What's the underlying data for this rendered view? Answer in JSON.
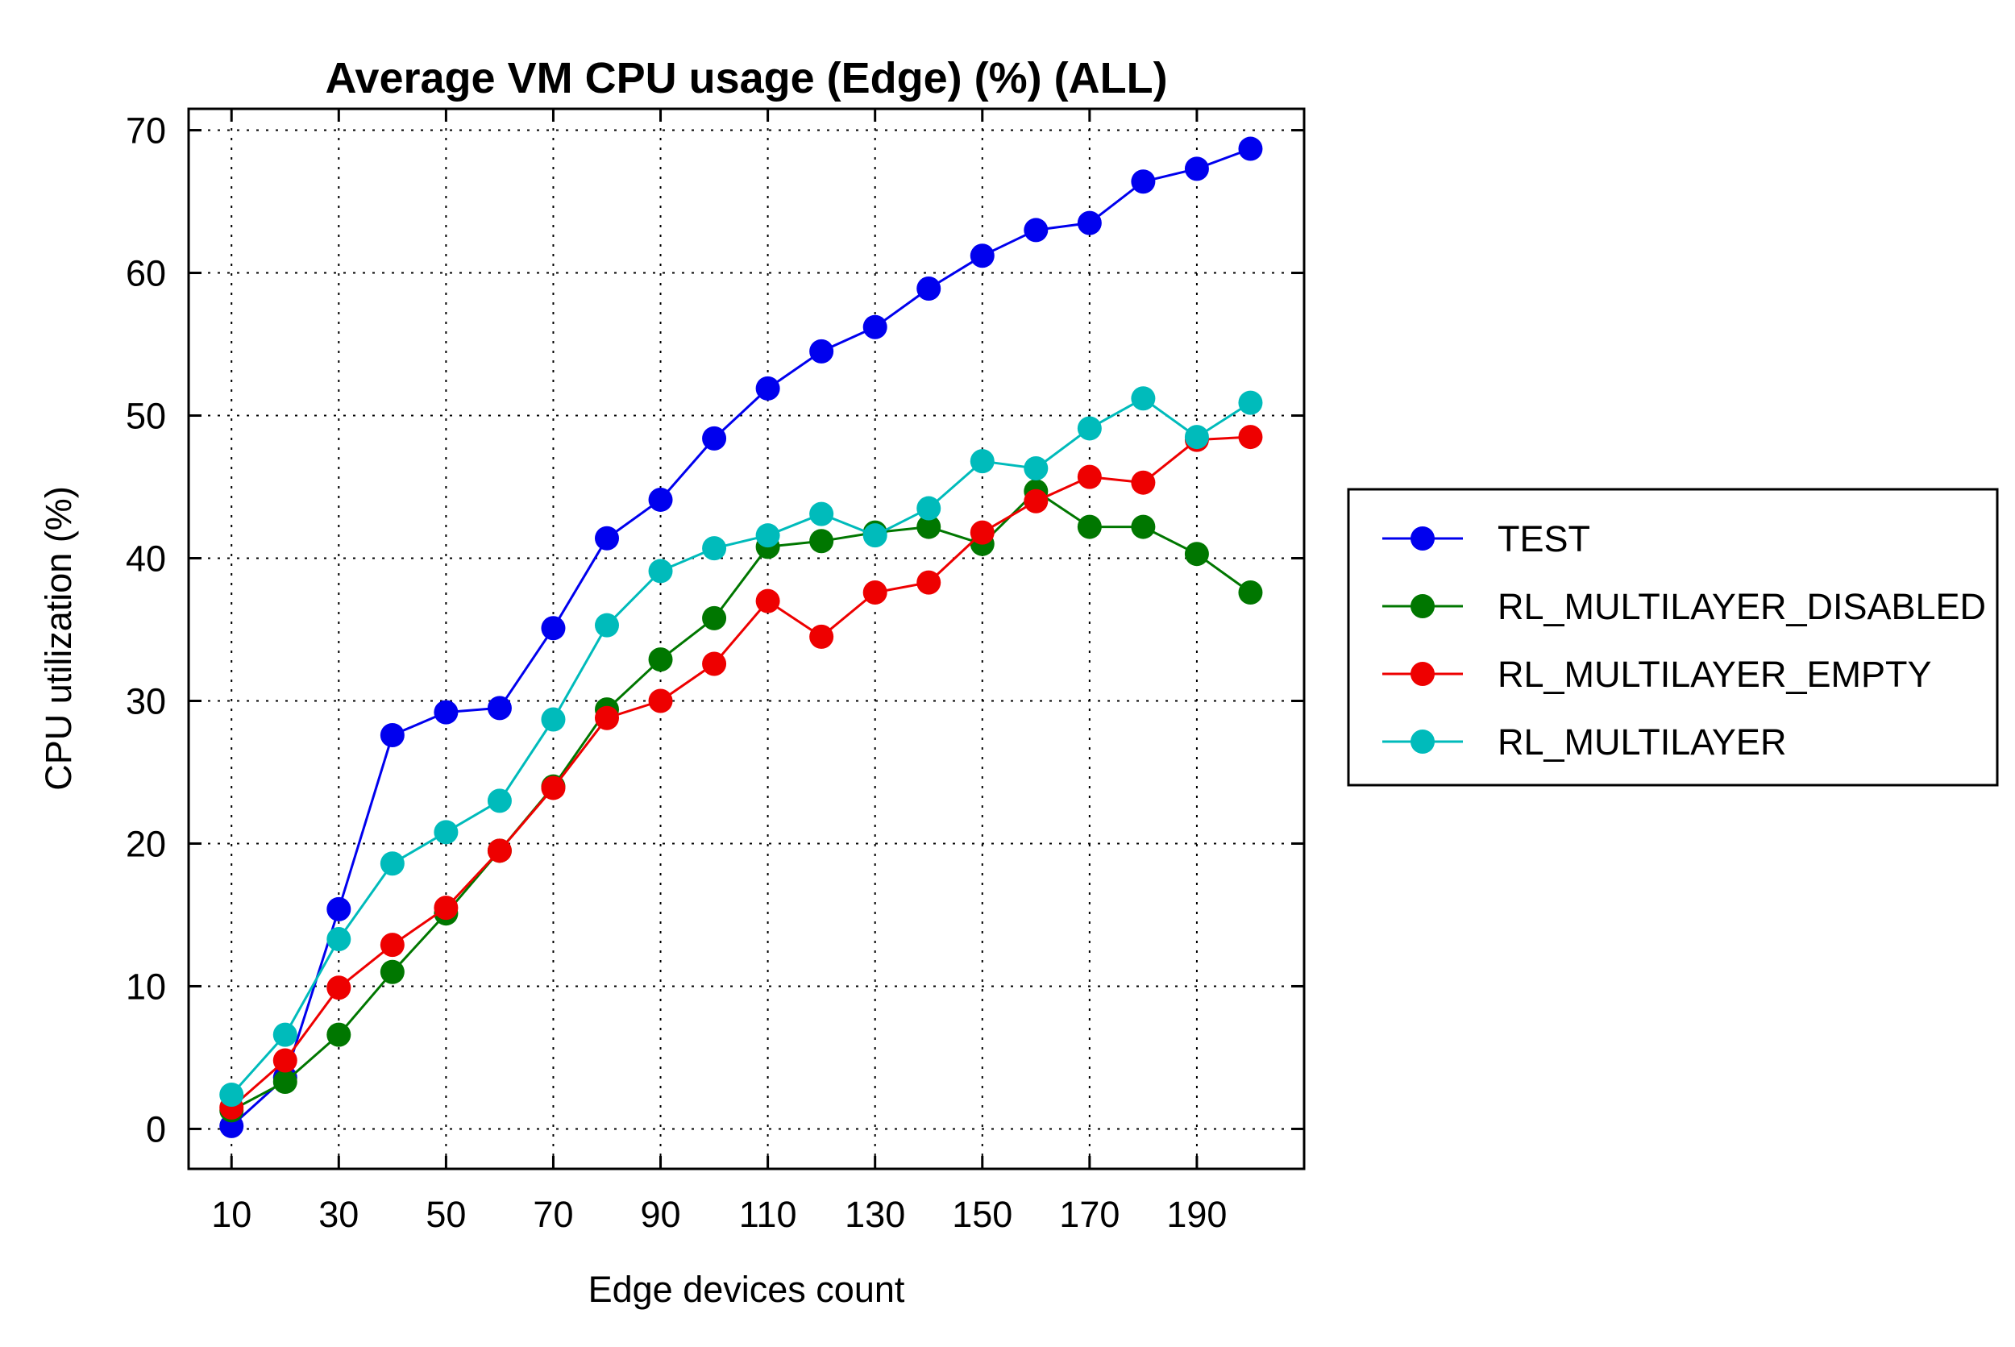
{
  "chart_data": {
    "type": "line",
    "title": "Average VM CPU usage (Edge) (%) (ALL)",
    "xlabel": "Edge devices count",
    "ylabel": "CPU utilization (%)",
    "x": [
      10,
      20,
      30,
      40,
      50,
      60,
      70,
      80,
      90,
      100,
      110,
      120,
      130,
      140,
      150,
      160,
      170,
      180,
      190,
      200
    ],
    "x_ticks": [
      "10",
      "30",
      "50",
      "70",
      "90",
      "110",
      "130",
      "150",
      "170",
      "190"
    ],
    "y_ticks": [
      "0",
      "10",
      "20",
      "30",
      "40",
      "50",
      "60",
      "70"
    ],
    "xlim": [
      2,
      210
    ],
    "ylim": [
      -2.8,
      71.5
    ],
    "grid": true,
    "legend_position": "right",
    "series": [
      {
        "name": "TEST",
        "color": "#0000ee",
        "values": [
          0.2,
          3.6,
          15.4,
          27.6,
          29.2,
          29.5,
          35.1,
          41.4,
          44.1,
          48.4,
          51.9,
          54.5,
          56.2,
          58.9,
          61.2,
          63.0,
          63.5,
          66.4,
          67.3,
          68.7
        ]
      },
      {
        "name": "RL_MULTILAYER_DISABLED",
        "color": "#007700",
        "values": [
          1.3,
          3.3,
          6.6,
          11.0,
          15.1,
          19.5,
          24.0,
          29.4,
          32.9,
          35.8,
          40.8,
          41.2,
          41.8,
          42.2,
          41.0,
          44.7,
          42.2,
          42.2,
          40.3,
          37.6
        ]
      },
      {
        "name": "RL_MULTILAYER_EMPTY",
        "color": "#ee0000",
        "values": [
          1.5,
          4.8,
          9.9,
          12.9,
          15.5,
          19.5,
          23.9,
          28.8,
          30.0,
          32.6,
          37.0,
          34.5,
          37.6,
          38.3,
          41.8,
          44.0,
          45.7,
          45.3,
          48.3,
          48.5
        ]
      },
      {
        "name": "RL_MULTILAYER",
        "color": "#00bbbb",
        "values": [
          2.4,
          6.6,
          13.3,
          18.6,
          20.8,
          23.0,
          28.7,
          35.3,
          39.1,
          40.7,
          41.6,
          43.1,
          41.6,
          43.5,
          46.8,
          46.3,
          49.1,
          51.2,
          48.5,
          50.9
        ]
      }
    ]
  }
}
